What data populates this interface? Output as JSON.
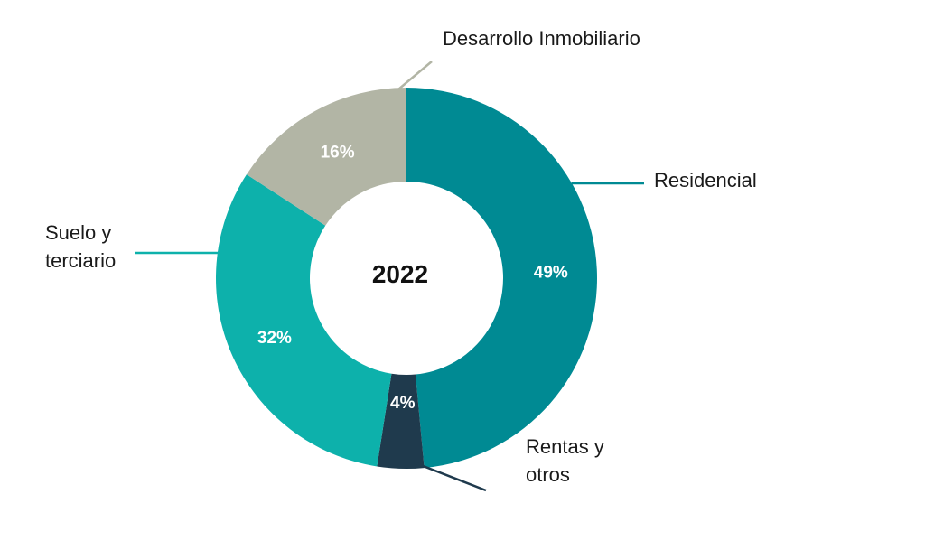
{
  "chart_data": {
    "type": "pie",
    "variant": "donut",
    "center_label": "2022",
    "slices": [
      {
        "label": "Residencial",
        "value": 49,
        "value_label": "49%",
        "color": "#008A93",
        "leader_color": "#008A93"
      },
      {
        "label": "Rentas y otros",
        "value": 4,
        "value_label": "4%",
        "color": "#1F3A4D",
        "leader_color": "#1F3A4D"
      },
      {
        "label": "Suelo y terciario",
        "value": 32,
        "value_label": "32%",
        "color": "#0DB1AB",
        "leader_color": "#0DB1AB"
      },
      {
        "label": "Desarrollo Inmobiliario",
        "value": 16,
        "value_label": "16%",
        "color": "#B2B5A5",
        "leader_color": "#B2B5A5"
      }
    ],
    "legend": "none"
  }
}
